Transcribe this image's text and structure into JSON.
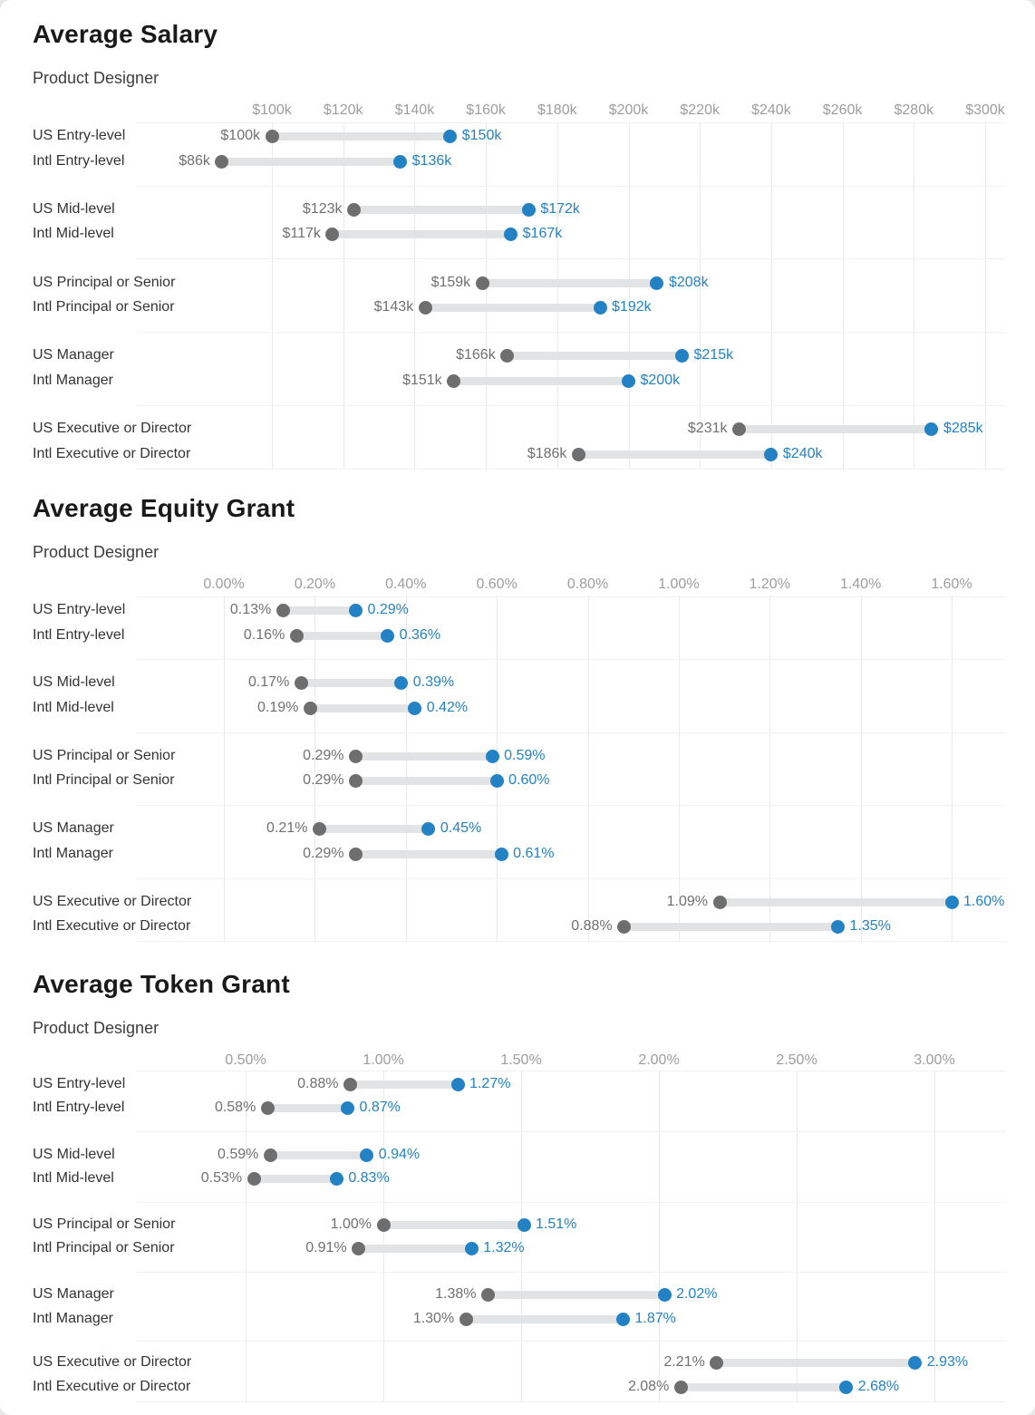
{
  "page": {
    "background": "#e8e8e8",
    "card_background": "#ffffff"
  },
  "colors": {
    "low_dot": "#6e6e6e",
    "high_dot": "#2382c4",
    "low_text": "#707070",
    "high_text": "#2382c4",
    "bar": "#e2e3e5",
    "axis_text": "#9d9d9d",
    "label_text": "#333333",
    "gridline": "#e9e9e9",
    "separator": "#f2f2f2",
    "title_text": "#1a1a1a"
  },
  "chart_data": [
    {
      "type": "dumbbell",
      "title": "Average Salary",
      "subtitle": "Product Designer",
      "unit": "USD thousands",
      "legend_position": "none",
      "axis": {
        "min": 100,
        "max": 300,
        "grid": true,
        "ticks": [
          {
            "value": 100,
            "label": "$100k"
          },
          {
            "value": 120,
            "label": "$120k"
          },
          {
            "value": 140,
            "label": "$140k"
          },
          {
            "value": 160,
            "label": "$160k"
          },
          {
            "value": 180,
            "label": "$180k"
          },
          {
            "value": 200,
            "label": "$200k"
          },
          {
            "value": 220,
            "label": "$220k"
          },
          {
            "value": 240,
            "label": "$240k"
          },
          {
            "value": 260,
            "label": "$260k"
          },
          {
            "value": 280,
            "label": "$280k"
          },
          {
            "value": 300,
            "label": "$300k"
          }
        ]
      },
      "rows": [
        {
          "label": "US Entry-level",
          "low": 100,
          "high": 150,
          "low_label": "$100k",
          "high_label": "$150k"
        },
        {
          "label": "Intl Entry-level",
          "low": 86,
          "high": 136,
          "low_label": "$86k",
          "high_label": "$136k"
        },
        {
          "label": "US Mid-level",
          "low": 123,
          "high": 172,
          "low_label": "$123k",
          "high_label": "$172k"
        },
        {
          "label": "Intl Mid-level",
          "low": 117,
          "high": 167,
          "low_label": "$117k",
          "high_label": "$167k"
        },
        {
          "label": "US Principal or Senior",
          "low": 159,
          "high": 208,
          "low_label": "$159k",
          "high_label": "$208k"
        },
        {
          "label": "Intl Principal or Senior",
          "low": 143,
          "high": 192,
          "low_label": "$143k",
          "high_label": "$192k"
        },
        {
          "label": "US Manager",
          "low": 166,
          "high": 215,
          "low_label": "$166k",
          "high_label": "$215k"
        },
        {
          "label": "Intl Manager",
          "low": 151,
          "high": 200,
          "low_label": "$151k",
          "high_label": "$200k"
        },
        {
          "label": "US Executive or Director",
          "low": 231,
          "high": 285,
          "low_label": "$231k",
          "high_label": "$285k"
        },
        {
          "label": "Intl Executive or Director",
          "low": 186,
          "high": 240,
          "low_label": "$186k",
          "high_label": "$240k"
        }
      ]
    },
    {
      "type": "dumbbell",
      "title": "Average Equity Grant",
      "subtitle": "Product Designer",
      "unit": "percent",
      "legend_position": "none",
      "axis": {
        "min": 0.0,
        "max": 1.6,
        "grid": true,
        "ticks": [
          {
            "value": 0.0,
            "label": "0.00%"
          },
          {
            "value": 0.2,
            "label": "0.20%"
          },
          {
            "value": 0.4,
            "label": "0.40%"
          },
          {
            "value": 0.6,
            "label": "0.60%"
          },
          {
            "value": 0.8,
            "label": "0.80%"
          },
          {
            "value": 1.0,
            "label": "1.00%"
          },
          {
            "value": 1.2,
            "label": "1.20%"
          },
          {
            "value": 1.4,
            "label": "1.40%"
          },
          {
            "value": 1.6,
            "label": "1.60%"
          }
        ]
      },
      "rows": [
        {
          "label": "US Entry-level",
          "low": 0.13,
          "high": 0.29,
          "low_label": "0.13%",
          "high_label": "0.29%"
        },
        {
          "label": "Intl Entry-level",
          "low": 0.16,
          "high": 0.36,
          "low_label": "0.16%",
          "high_label": "0.36%"
        },
        {
          "label": "US Mid-level",
          "low": 0.17,
          "high": 0.39,
          "low_label": "0.17%",
          "high_label": "0.39%"
        },
        {
          "label": "Intl Mid-level",
          "low": 0.19,
          "high": 0.42,
          "low_label": "0.19%",
          "high_label": "0.42%"
        },
        {
          "label": "US Principal or Senior",
          "low": 0.29,
          "high": 0.59,
          "low_label": "0.29%",
          "high_label": "0.59%"
        },
        {
          "label": "Intl Principal or Senior",
          "low": 0.29,
          "high": 0.6,
          "low_label": "0.29%",
          "high_label": "0.60%"
        },
        {
          "label": "US Manager",
          "low": 0.21,
          "high": 0.45,
          "low_label": "0.21%",
          "high_label": "0.45%"
        },
        {
          "label": "Intl Manager",
          "low": 0.29,
          "high": 0.61,
          "low_label": "0.29%",
          "high_label": "0.61%"
        },
        {
          "label": "US Executive or Director",
          "low": 1.09,
          "high": 1.6,
          "low_label": "1.09%",
          "high_label": "1.60%"
        },
        {
          "label": "Intl Executive or Director",
          "low": 0.88,
          "high": 1.35,
          "low_label": "0.88%",
          "high_label": "1.35%"
        }
      ]
    },
    {
      "type": "dumbbell",
      "title": "Average Token Grant",
      "subtitle": "Product Designer",
      "unit": "percent",
      "legend_position": "none",
      "axis": {
        "min": 0.5,
        "max": 3.0,
        "grid": true,
        "ticks": [
          {
            "value": 0.5,
            "label": "0.50%"
          },
          {
            "value": 1.0,
            "label": "1.00%"
          },
          {
            "value": 1.5,
            "label": "1.50%"
          },
          {
            "value": 2.0,
            "label": "2.00%"
          },
          {
            "value": 2.5,
            "label": "2.50%"
          },
          {
            "value": 3.0,
            "label": "3.00%"
          }
        ]
      },
      "rows": [
        {
          "label": "US Entry-level",
          "low": 0.88,
          "high": 1.27,
          "low_label": "0.88%",
          "high_label": "1.27%"
        },
        {
          "label": "Intl Entry-level",
          "low": 0.58,
          "high": 0.87,
          "low_label": "0.58%",
          "high_label": "0.87%"
        },
        {
          "label": "US Mid-level",
          "low": 0.59,
          "high": 0.94,
          "low_label": "0.59%",
          "high_label": "0.94%"
        },
        {
          "label": "Intl Mid-level",
          "low": 0.53,
          "high": 0.83,
          "low_label": "0.53%",
          "high_label": "0.83%"
        },
        {
          "label": "US Principal or Senior",
          "low": 1.0,
          "high": 1.51,
          "low_label": "1.00%",
          "high_label": "1.51%"
        },
        {
          "label": "Intl Principal or Senior",
          "low": 0.91,
          "high": 1.32,
          "low_label": "0.91%",
          "high_label": "1.32%"
        },
        {
          "label": "US Manager",
          "low": 1.38,
          "high": 2.02,
          "low_label": "1.38%",
          "high_label": "2.02%"
        },
        {
          "label": "Intl Manager",
          "low": 1.3,
          "high": 1.87,
          "low_label": "1.30%",
          "high_label": "1.87%"
        },
        {
          "label": "US Executive or Director",
          "low": 2.21,
          "high": 2.93,
          "low_label": "2.21%",
          "high_label": "2.93%"
        },
        {
          "label": "Intl Executive or Director",
          "low": 2.08,
          "high": 2.68,
          "low_label": "2.08%",
          "high_label": "2.68%"
        }
      ]
    }
  ]
}
